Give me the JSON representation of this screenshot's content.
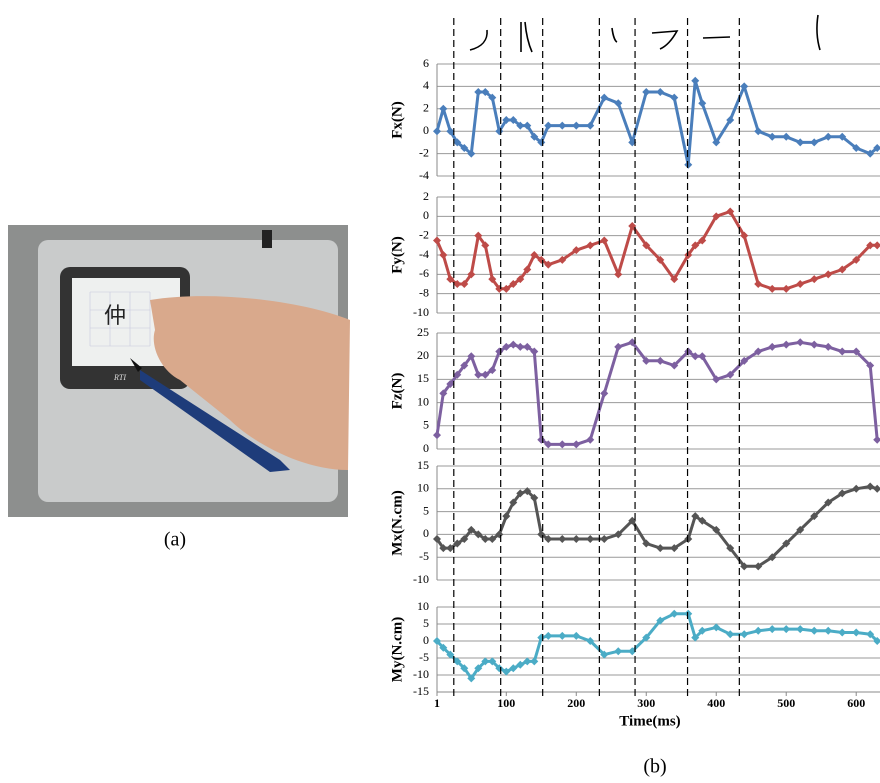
{
  "photo": {
    "device_label": "RTI",
    "screen_text": "仲",
    "caption": "(a)"
  },
  "figure_caption": "(b)",
  "stroke_boundaries": [
    25,
    92,
    152,
    233,
    284,
    359,
    433
  ],
  "chart_data": [
    {
      "type": "line",
      "ylabel": "Fx(N)",
      "color": "#4a7ebb",
      "x": [
        1,
        10,
        20,
        30,
        40,
        50,
        60,
        70,
        80,
        90,
        100,
        110,
        120,
        130,
        140,
        150,
        160,
        180,
        200,
        220,
        240,
        260,
        280,
        300,
        320,
        340,
        360,
        370,
        380,
        400,
        420,
        440,
        460,
        480,
        500,
        520,
        540,
        560,
        580,
        600,
        620,
        630
      ],
      "values": [
        0,
        2,
        0,
        -1,
        -1.5,
        -2,
        3.5,
        3.5,
        3,
        0,
        1,
        1,
        0.5,
        0.5,
        -0.5,
        -1,
        0.5,
        0.5,
        0.5,
        0.5,
        3,
        2.5,
        -1,
        3.5,
        3.5,
        3,
        -3,
        4.5,
        2.5,
        -1,
        1,
        4,
        0,
        -0.5,
        -0.5,
        -1,
        -1,
        -0.5,
        -0.5,
        -1.5,
        -2,
        -1.5
      ],
      "xlim": [
        1,
        634
      ],
      "ylim": [
        -4,
        6
      ],
      "yticks": [
        -4,
        -2,
        0,
        2,
        4,
        6
      ],
      "grid": true
    },
    {
      "type": "line",
      "ylabel": "Fy(N)",
      "color": "#be4b48",
      "x": [
        1,
        10,
        20,
        30,
        40,
        50,
        60,
        70,
        80,
        90,
        100,
        110,
        120,
        130,
        140,
        150,
        160,
        180,
        200,
        220,
        240,
        260,
        280,
        300,
        320,
        340,
        360,
        370,
        380,
        400,
        420,
        440,
        460,
        480,
        500,
        520,
        540,
        560,
        580,
        600,
        620,
        630
      ],
      "values": [
        -2.5,
        -4,
        -6.5,
        -7,
        -7,
        -6,
        -2,
        -3,
        -6.5,
        -7.5,
        -7.5,
        -7,
        -6.5,
        -5.5,
        -4,
        -4.5,
        -5,
        -4.5,
        -3.5,
        -3,
        -2.5,
        -6,
        -1,
        -3,
        -4.5,
        -6.5,
        -4,
        -3,
        -2.5,
        0,
        0.5,
        -2,
        -7,
        -7.5,
        -7.5,
        -7,
        -6.5,
        -6,
        -5.5,
        -4.5,
        -3,
        -3
      ],
      "xlim": [
        1,
        634
      ],
      "ylim": [
        -10,
        2
      ],
      "yticks": [
        -10,
        -8,
        -6,
        -4,
        -2,
        0,
        2
      ],
      "grid": true
    },
    {
      "type": "line",
      "ylabel": "Fz(N)",
      "color": "#7d60a0",
      "x": [
        1,
        10,
        20,
        30,
        40,
        50,
        60,
        70,
        80,
        90,
        100,
        110,
        120,
        130,
        140,
        150,
        160,
        180,
        200,
        220,
        240,
        260,
        280,
        300,
        320,
        340,
        360,
        370,
        380,
        400,
        420,
        440,
        460,
        480,
        500,
        520,
        540,
        560,
        580,
        600,
        620,
        630
      ],
      "values": [
        3,
        12,
        14,
        16,
        18,
        20,
        16,
        16,
        17,
        21,
        22,
        22.5,
        22,
        22,
        21,
        2,
        1,
        1,
        1,
        2,
        12,
        22,
        23,
        19,
        19,
        18,
        21,
        20,
        20,
        15,
        16,
        19,
        21,
        22,
        22.5,
        23,
        22.5,
        22,
        21,
        21,
        18,
        2
      ],
      "xlim": [
        1,
        634
      ],
      "ylim": [
        0,
        25
      ],
      "yticks": [
        0,
        5,
        10,
        15,
        20,
        25
      ],
      "grid": true
    },
    {
      "type": "line",
      "ylabel": "Mx(N.cm)",
      "color": "#555555",
      "x": [
        1,
        10,
        20,
        30,
        40,
        50,
        60,
        70,
        80,
        90,
        100,
        110,
        120,
        130,
        140,
        150,
        160,
        180,
        200,
        220,
        240,
        260,
        280,
        300,
        320,
        340,
        360,
        370,
        380,
        400,
        420,
        440,
        460,
        480,
        500,
        520,
        540,
        560,
        580,
        600,
        620,
        630
      ],
      "values": [
        -1,
        -3,
        -3,
        -2,
        -1,
        1,
        0,
        -1,
        -1,
        0,
        4,
        7,
        9,
        9.5,
        8,
        0,
        -1,
        -1,
        -1,
        -1,
        -1,
        0,
        3,
        -2,
        -3,
        -3,
        -1,
        4,
        3,
        1,
        -3,
        -7,
        -7,
        -5,
        -2,
        1,
        4,
        7,
        9,
        10,
        10.5,
        10
      ],
      "xlim": [
        1,
        634
      ],
      "ylim": [
        -10,
        15
      ],
      "yticks": [
        -10,
        -5,
        0,
        5,
        10,
        15
      ],
      "grid": true
    },
    {
      "type": "line",
      "ylabel": "My(N.cm)",
      "color": "#4bacc6",
      "xlabel": "Time(ms)",
      "x": [
        1,
        10,
        20,
        30,
        40,
        50,
        60,
        70,
        80,
        90,
        100,
        110,
        120,
        130,
        140,
        150,
        160,
        180,
        200,
        220,
        240,
        260,
        280,
        300,
        320,
        340,
        360,
        370,
        380,
        400,
        420,
        440,
        460,
        480,
        500,
        520,
        540,
        560,
        580,
        600,
        620,
        630
      ],
      "values": [
        0,
        -2,
        -4,
        -6,
        -8,
        -11,
        -8,
        -6,
        -6,
        -8,
        -9,
        -8,
        -7,
        -6,
        -6,
        1,
        1.5,
        1.5,
        1.5,
        0,
        -4,
        -3,
        -3,
        1,
        6,
        8,
        8,
        1,
        3,
        4,
        2,
        2,
        3,
        3.5,
        3.5,
        3.5,
        3,
        3,
        2.5,
        2.5,
        2,
        0
      ],
      "xlim": [
        1,
        634
      ],
      "ylim": [
        -15,
        10
      ],
      "yticks": [
        -15,
        -10,
        -5,
        0,
        5,
        10
      ],
      "xticks": [
        1,
        100,
        200,
        300,
        400,
        500,
        600
      ],
      "grid": true
    }
  ]
}
